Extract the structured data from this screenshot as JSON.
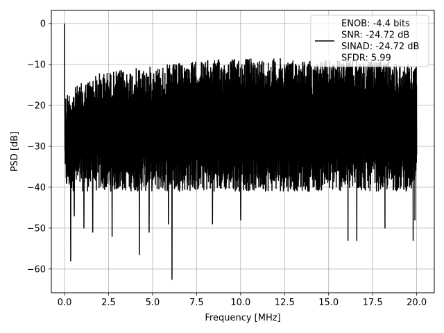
{
  "chart_data": {
    "type": "line",
    "title": "",
    "xlabel": "Frequency [MHz]",
    "ylabel": "PSD [dB]",
    "xlim": [
      -0.75,
      21.0
    ],
    "ylim": [
      -65.8,
      3.2
    ],
    "xticks": [
      0.0,
      2.5,
      5.0,
      7.5,
      10.0,
      12.5,
      15.0,
      17.5,
      20.0
    ],
    "xtick_labels": [
      "0.0",
      "2.5",
      "5.0",
      "7.5",
      "10.0",
      "12.5",
      "15.0",
      "17.5",
      "20.0"
    ],
    "yticks": [
      0,
      -10,
      -20,
      -30,
      -40,
      -50,
      -60
    ],
    "ytick_labels": [
      "0",
      "−10",
      "−20",
      "−30",
      "−40",
      "−50",
      "−60"
    ],
    "grid": true,
    "legend_position": "top-right",
    "series": [
      {
        "name": "",
        "color": "#000000",
        "note_values": "dense noisy PSD trace from 0 to 20 MHz",
        "x_range": [
          0.0,
          20.0
        ],
        "peak": {
          "x": 0.0,
          "y": 0.0
        },
        "upper_envelope_db": [
          -17,
          -12,
          -11,
          -10,
          -9,
          -8.5,
          -8.5,
          -9,
          -9,
          -9,
          -10
        ],
        "typical_lower_db": -38,
        "deep_nulls": [
          {
            "x": 0.35,
            "y": -58
          },
          {
            "x": 0.55,
            "y": -47
          },
          {
            "x": 1.1,
            "y": -50
          },
          {
            "x": 1.6,
            "y": -51
          },
          {
            "x": 2.7,
            "y": -52
          },
          {
            "x": 4.25,
            "y": -56.5
          },
          {
            "x": 4.8,
            "y": -51
          },
          {
            "x": 6.1,
            "y": -62.5
          },
          {
            "x": 5.9,
            "y": -49
          },
          {
            "x": 8.4,
            "y": -49
          },
          {
            "x": 10.0,
            "y": -48
          },
          {
            "x": 16.1,
            "y": -53
          },
          {
            "x": 16.6,
            "y": -53
          },
          {
            "x": 18.2,
            "y": -50
          },
          {
            "x": 19.8,
            "y": -53
          },
          {
            "x": 19.9,
            "y": -48
          }
        ]
      }
    ],
    "legend_entries": [
      "ENOB: -4.4 bits",
      "SNR: -24.72 dB",
      "SINAD: -24.72 dB",
      "SFDR: 5.99"
    ]
  }
}
